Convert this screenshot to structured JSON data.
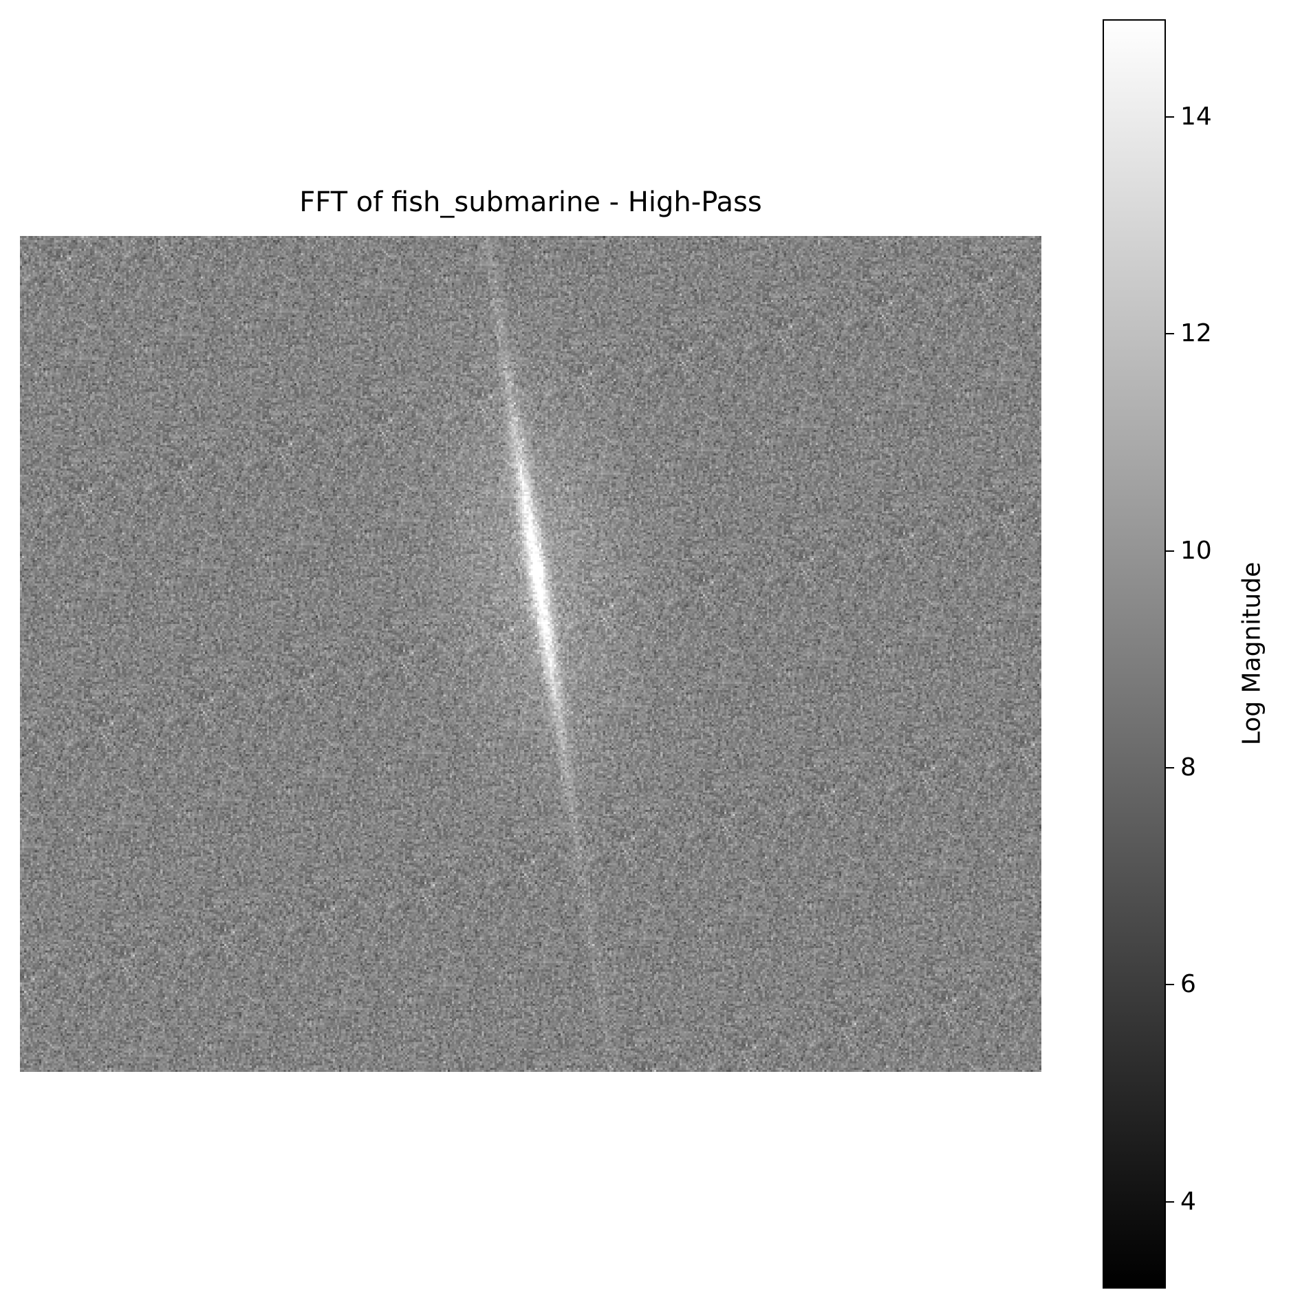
{
  "chart_data": {
    "type": "heatmap",
    "title": "FFT of fish_submarine - High-Pass",
    "axes_visible": false,
    "colormap": "gray",
    "colorbar": {
      "label": "Log Magnitude",
      "vmin": 3.2,
      "vmax": 14.9,
      "ticks": [
        4,
        6,
        8,
        10,
        12,
        14
      ],
      "tick_labels": [
        "4",
        "6",
        "8",
        "10",
        "12",
        "14"
      ],
      "position": "right"
    },
    "image_grid": {
      "cols": 480,
      "rows": 392
    },
    "background_level": 9.2,
    "noise_spread": 0.8,
    "features": [
      {
        "kind": "central-streak",
        "description": "bright diagonal streak through spectrum centre, peak near 15"
      },
      {
        "kind": "faint-line",
        "description": "faint bright line extending above and below the centre along the same diagonal"
      }
    ]
  }
}
